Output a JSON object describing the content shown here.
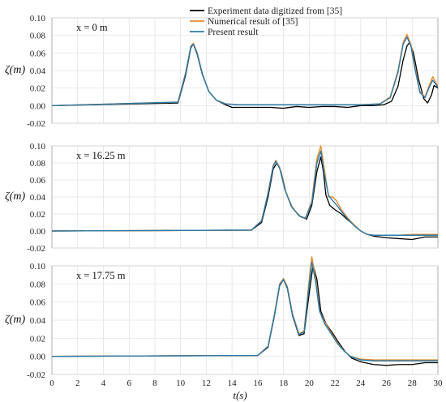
{
  "chart_data": [
    {
      "type": "line",
      "panel_label": "x = 0 m",
      "ylabel": "ζ(m)",
      "xlim": [
        0,
        30
      ],
      "ylim": [
        -0.02,
        0.1
      ],
      "yticks": [
        "0.10",
        "0.08",
        "0.06",
        "0.04",
        "0.02",
        "0.00",
        "-0.02"
      ],
      "legend_position": "top-center",
      "series": [
        {
          "name": "Experiment data digitized from [35]",
          "color": "#000000",
          "x": [
            0,
            9.8,
            10.4,
            10.8,
            11.0,
            11.3,
            11.7,
            12.2,
            12.8,
            13.5,
            14.0,
            15,
            16,
            17,
            18,
            19,
            20,
            21,
            22,
            23,
            24,
            25,
            25.8,
            26.4,
            26.9,
            27.3,
            27.6,
            27.8,
            28.1,
            28.5,
            28.9,
            29.2,
            29.5,
            29.7,
            30
          ],
          "y": [
            0,
            0.003,
            0.035,
            0.066,
            0.07,
            0.058,
            0.035,
            0.016,
            0.006,
            0.001,
            -0.002,
            -0.002,
            -0.002,
            -0.002,
            -0.003,
            -0.001,
            -0.002,
            -0.001,
            -0.001,
            -0.002,
            0.0,
            0.0,
            0.001,
            0.005,
            0.022,
            0.052,
            0.068,
            0.072,
            0.06,
            0.03,
            0.008,
            0.003,
            0.012,
            0.023,
            0.02
          ]
        },
        {
          "name": "Numerical result of [35]",
          "color": "#E58A2E",
          "x": [
            0,
            9.8,
            10.4,
            10.8,
            11.0,
            11.3,
            11.7,
            12.2,
            12.8,
            13.5,
            14.5,
            16,
            18,
            20,
            22,
            24,
            25.5,
            26.3,
            26.9,
            27.3,
            27.6,
            27.9,
            28.2,
            28.6,
            29.0,
            29.3,
            29.6,
            30
          ],
          "y": [
            0,
            0.004,
            0.038,
            0.068,
            0.071,
            0.06,
            0.036,
            0.016,
            0.006,
            0.002,
            0.001,
            0.001,
            0.001,
            0.001,
            0.001,
            0.001,
            0.002,
            0.01,
            0.04,
            0.072,
            0.081,
            0.07,
            0.045,
            0.016,
            0.01,
            0.022,
            0.033,
            0.022
          ]
        },
        {
          "name": "Present result",
          "color": "#2B7BA8",
          "x": [
            0,
            9.8,
            10.4,
            10.8,
            11.0,
            11.3,
            11.7,
            12.2,
            12.8,
            13.5,
            14.5,
            16,
            18,
            20,
            22,
            24,
            25.5,
            26.3,
            26.9,
            27.3,
            27.6,
            27.9,
            28.2,
            28.6,
            29.0,
            29.3,
            29.6,
            30
          ],
          "y": [
            0,
            0.004,
            0.037,
            0.067,
            0.07,
            0.059,
            0.036,
            0.016,
            0.006,
            0.002,
            0.001,
            0.001,
            0.001,
            0.001,
            0.001,
            0.001,
            0.002,
            0.009,
            0.038,
            0.07,
            0.078,
            0.068,
            0.043,
            0.015,
            0.009,
            0.02,
            0.029,
            0.021
          ]
        }
      ]
    },
    {
      "type": "line",
      "panel_label": "x = 16.25 m",
      "ylabel": "ζ(m)",
      "xlim": [
        0,
        30
      ],
      "ylim": [
        -0.02,
        0.1
      ],
      "yticks": [
        "0.10",
        "0.08",
        "0.06",
        "0.04",
        "0.02",
        "0.00",
        "-0.02"
      ],
      "series": [
        {
          "name": "Experiment data digitized from [35]",
          "color": "#000000",
          "x": [
            0,
            15.5,
            16.3,
            16.8,
            17.2,
            17.5,
            17.8,
            18.2,
            18.7,
            19.3,
            19.8,
            20.2,
            20.6,
            20.9,
            21.1,
            21.3,
            21.6,
            22.0,
            22.5,
            23.0,
            23.5,
            24.0,
            24.5,
            25,
            26,
            27,
            28,
            29,
            30
          ],
          "y": [
            0,
            0.001,
            0.01,
            0.04,
            0.073,
            0.08,
            0.07,
            0.045,
            0.027,
            0.017,
            0.014,
            0.03,
            0.07,
            0.087,
            0.07,
            0.042,
            0.03,
            0.025,
            0.02,
            0.013,
            0.007,
            0.0,
            -0.004,
            -0.006,
            -0.008,
            -0.009,
            -0.01,
            -0.007,
            -0.007
          ]
        },
        {
          "name": "Numerical result of [35]",
          "color": "#E58A2E",
          "x": [
            0,
            15.5,
            16.3,
            16.8,
            17.2,
            17.4,
            17.7,
            18.1,
            18.6,
            19.2,
            19.7,
            20.2,
            20.6,
            20.9,
            21.2,
            21.5,
            21.8,
            22.1,
            22.5,
            23.0,
            23.5,
            24.0,
            24.5,
            25,
            26,
            27,
            28,
            29,
            30
          ],
          "y": [
            0,
            0.001,
            0.012,
            0.045,
            0.077,
            0.083,
            0.075,
            0.05,
            0.03,
            0.018,
            0.015,
            0.035,
            0.085,
            0.1,
            0.07,
            0.04,
            0.04,
            0.036,
            0.025,
            0.015,
            0.007,
            0.0,
            -0.004,
            -0.005,
            -0.005,
            -0.005,
            -0.004,
            -0.004,
            -0.004
          ]
        },
        {
          "name": "Present result",
          "color": "#2B7BA8",
          "x": [
            0,
            15.5,
            16.3,
            16.8,
            17.2,
            17.4,
            17.7,
            18.1,
            18.6,
            19.2,
            19.7,
            20.2,
            20.6,
            20.9,
            21.2,
            21.5,
            21.8,
            22.1,
            22.5,
            23.0,
            23.5,
            24.0,
            24.5,
            25,
            26,
            27,
            28,
            29,
            30
          ],
          "y": [
            0,
            0.001,
            0.012,
            0.044,
            0.076,
            0.082,
            0.074,
            0.049,
            0.029,
            0.018,
            0.015,
            0.033,
            0.08,
            0.094,
            0.065,
            0.042,
            0.036,
            0.031,
            0.023,
            0.014,
            0.006,
            0.0,
            -0.004,
            -0.005,
            -0.005,
            -0.005,
            -0.005,
            -0.005,
            -0.005
          ]
        }
      ]
    },
    {
      "type": "line",
      "panel_label": "x = 17.75 m",
      "ylabel": "ζ(m)",
      "xlabel": "t(s)",
      "xlim": [
        0,
        30
      ],
      "ylim": [
        -0.02,
        0.1
      ],
      "yticks": [
        "0.10",
        "0.08",
        "0.06",
        "0.04",
        "0.02",
        "0.00",
        "-0.02"
      ],
      "xticks": [
        "0",
        "2",
        "4",
        "6",
        "8",
        "10",
        "12",
        "14",
        "16",
        "18",
        "20",
        "22",
        "24",
        "26",
        "28",
        "30"
      ],
      "series": [
        {
          "name": "Experiment data digitized from [35]",
          "color": "#000000",
          "x": [
            0,
            16.0,
            16.8,
            17.3,
            17.7,
            18.0,
            18.3,
            18.7,
            19.2,
            19.6,
            20.0,
            20.3,
            20.6,
            20.9,
            21.3,
            21.8,
            22.3,
            22.8,
            23.3,
            24,
            25,
            26,
            27,
            28,
            29,
            30
          ],
          "y": [
            0,
            0.001,
            0.01,
            0.045,
            0.078,
            0.085,
            0.075,
            0.045,
            0.023,
            0.025,
            0.07,
            0.101,
            0.085,
            0.05,
            0.036,
            0.026,
            0.015,
            0.005,
            -0.002,
            -0.006,
            -0.009,
            -0.01,
            -0.009,
            -0.009,
            -0.007,
            -0.007
          ]
        },
        {
          "name": "Numerical result of [35]",
          "color": "#E58A2E",
          "x": [
            0,
            16.0,
            16.8,
            17.3,
            17.7,
            18.0,
            18.3,
            18.7,
            19.2,
            19.6,
            20.0,
            20.2,
            20.5,
            20.8,
            21.2,
            21.7,
            22.2,
            22.7,
            23.2,
            24,
            25,
            26,
            27,
            28,
            29,
            30
          ],
          "y": [
            0,
            0.001,
            0.011,
            0.047,
            0.08,
            0.086,
            0.077,
            0.047,
            0.025,
            0.028,
            0.085,
            0.11,
            0.085,
            0.05,
            0.038,
            0.026,
            0.015,
            0.006,
            0.0,
            -0.003,
            -0.004,
            -0.004,
            -0.004,
            -0.004,
            -0.004,
            -0.004
          ]
        },
        {
          "name": "Present result",
          "color": "#2B7BA8",
          "x": [
            0,
            16.0,
            16.8,
            17.3,
            17.7,
            18.0,
            18.3,
            18.7,
            19.2,
            19.6,
            20.0,
            20.2,
            20.5,
            20.8,
            21.2,
            21.7,
            22.2,
            22.7,
            23.2,
            24,
            25,
            26,
            27,
            28,
            29,
            30
          ],
          "y": [
            0,
            0.001,
            0.011,
            0.046,
            0.079,
            0.085,
            0.076,
            0.046,
            0.024,
            0.027,
            0.08,
            0.104,
            0.082,
            0.05,
            0.036,
            0.025,
            0.014,
            0.006,
            0.0,
            -0.004,
            -0.005,
            -0.005,
            -0.005,
            -0.005,
            -0.005,
            -0.005
          ]
        }
      ]
    }
  ]
}
